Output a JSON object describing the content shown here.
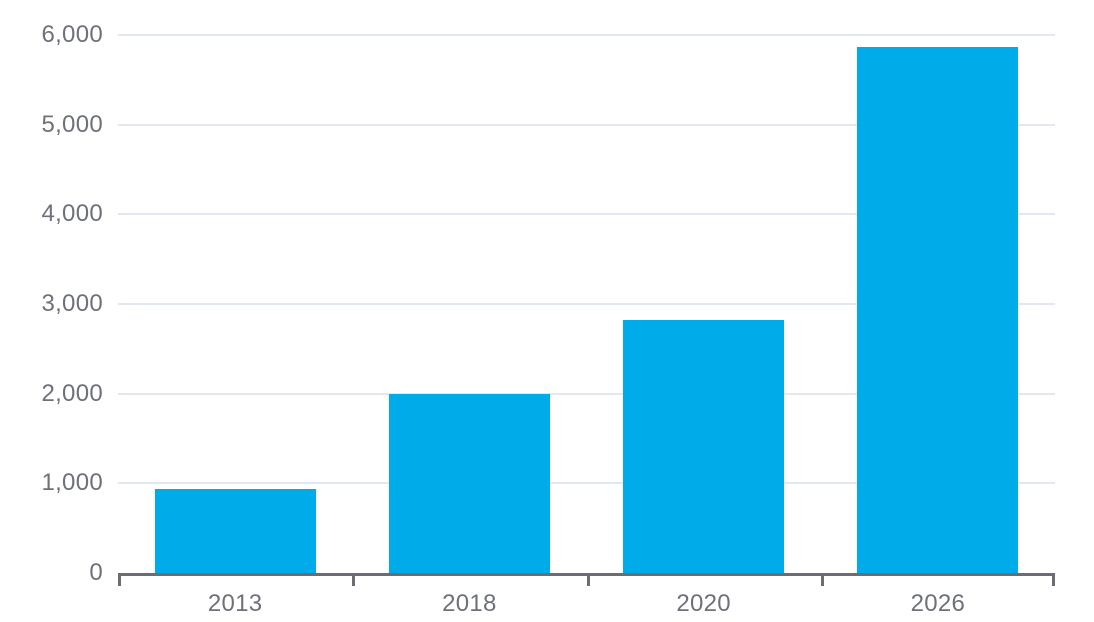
{
  "chart_data": {
    "type": "bar",
    "title": "",
    "xlabel": "",
    "ylabel": "",
    "categories": [
      "2013",
      "2018",
      "2020",
      "2026"
    ],
    "values": [
      940,
      2000,
      2820,
      5870
    ],
    "ylim": [
      0,
      6000
    ],
    "y_ticks": [
      0,
      1000,
      2000,
      3000,
      4000,
      5000,
      6000
    ],
    "y_tick_labels": [
      "0",
      "1,000",
      "2,000",
      "3,000",
      "4,000",
      "5,000",
      "6,000"
    ],
    "grid": "horizontal-only",
    "legend": "none",
    "bar_color": "#00ABE9"
  },
  "colors": {
    "bar": "#00ABE9",
    "gridline": "#E3E7F0",
    "axis": "#6A6E74",
    "label": "#6E717B",
    "background": "#FFFFFF"
  }
}
